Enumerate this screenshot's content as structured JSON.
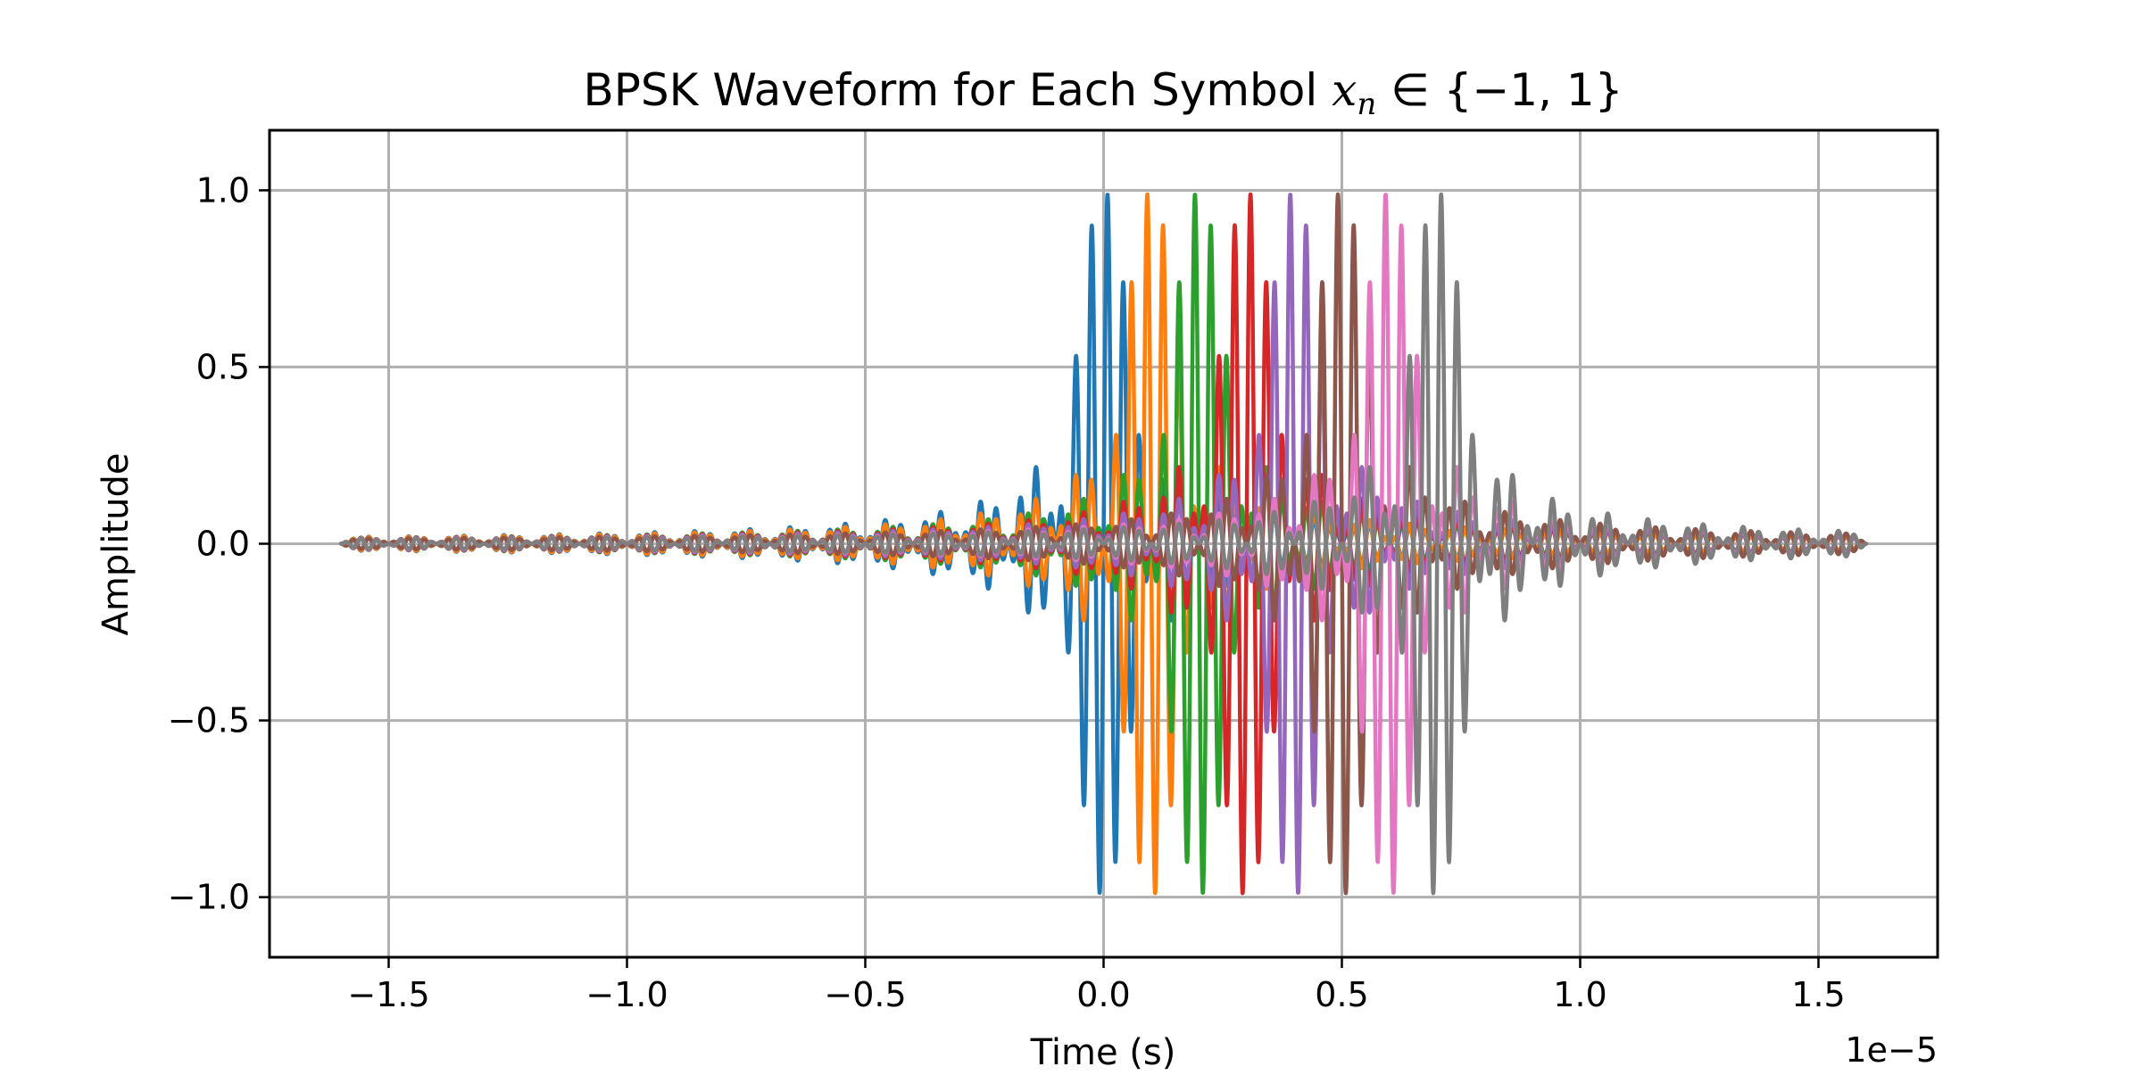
{
  "chart_data": {
    "type": "line",
    "title_prefix": "BPSK Waveform for Each Symbol ",
    "title_math_var": "x",
    "title_math_sub": "n",
    "title_suffix": " ∈ {−1, 1}",
    "xlabel": "Time (s)",
    "ylabel": "Amplitude",
    "x_offset_label": "1e−5",
    "x_scale": 1e-05,
    "xlim": [
      -1.75,
      1.75
    ],
    "ylim": [
      -1.17,
      1.17
    ],
    "xticks": [
      -1.5,
      -1.0,
      -0.5,
      0.0,
      0.5,
      1.0,
      1.5
    ],
    "xtick_labels": [
      "−1.5",
      "−1.0",
      "−0.5",
      "0.0",
      "0.5",
      "1.0",
      "1.5"
    ],
    "yticks": [
      -1.0,
      -0.5,
      0.0,
      0.5,
      1.0
    ],
    "ytick_labels": [
      "−1.0",
      "−0.5",
      "0.0",
      "0.5",
      "1.0"
    ],
    "grid": true,
    "legend": false,
    "x_range": [
      -1.6,
      1.6
    ],
    "symbol_period": 0.1,
    "carrier_cycles_per_symbol": 3,
    "series": [
      {
        "symbol_index": 0,
        "symbol_time": 0.0,
        "symbol": 1,
        "color": "#1f77b4"
      },
      {
        "symbol_index": 1,
        "symbol_time": 0.1,
        "symbol": -1,
        "color": "#ff7f0e"
      },
      {
        "symbol_index": 2,
        "symbol_time": 0.2,
        "symbol": -1,
        "color": "#2ca02c"
      },
      {
        "symbol_index": 3,
        "symbol_time": 0.3,
        "symbol": 1,
        "color": "#d62728"
      },
      {
        "symbol_index": 4,
        "symbol_time": 0.4,
        "symbol": -1,
        "color": "#9467bd"
      },
      {
        "symbol_index": 5,
        "symbol_time": 0.5,
        "symbol": -1,
        "color": "#8c564b"
      },
      {
        "symbol_index": 6,
        "symbol_time": 0.6,
        "symbol": -1,
        "color": "#e377c2"
      },
      {
        "symbol_index": 7,
        "symbol_time": 0.7,
        "symbol": 1,
        "color": "#7f7f7f"
      }
    ]
  }
}
